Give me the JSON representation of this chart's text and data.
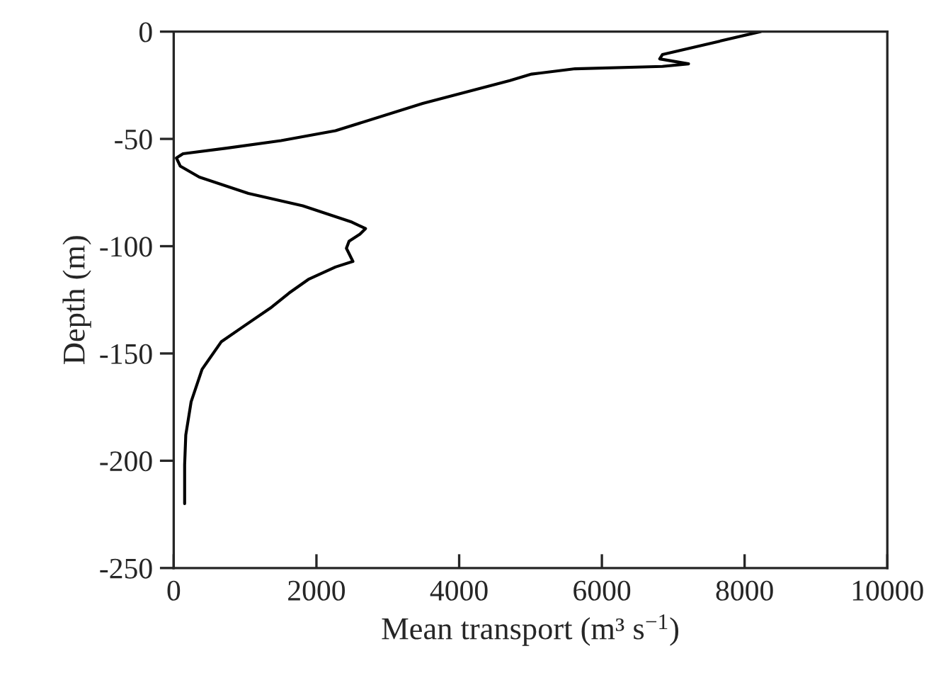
{
  "chart_data": {
    "type": "line",
    "xlabel": "Mean transport (m³ s$^{−1}$)",
    "ylabel": "Depth (m)",
    "xlim": [
      0,
      10000
    ],
    "xticks": [
      0,
      2000,
      4000,
      6000,
      8000,
      10000
    ],
    "ylim": [
      -250,
      0
    ],
    "yticks": [
      -250,
      -200,
      -150,
      -100,
      -50,
      0
    ],
    "grid": false,
    "marker": "none",
    "line_style": "solid",
    "series": [
      {
        "color": "#000000",
        "x": [
          8222,
          6848,
          6810,
          7214,
          6848,
          5626,
          5015,
          4710,
          3489,
          2267,
          1504,
          741,
          130,
          38,
          92,
          359,
          1046,
          1808,
          2497,
          2688,
          2610,
          2457,
          2420,
          2511,
          2267,
          1886,
          1618,
          1352,
          969,
          665,
          397,
          244,
          169,
          153,
          153
        ],
        "values": [
          0,
          -10.7,
          -12.7,
          -15,
          -16.2,
          -17.3,
          -19.8,
          -22.8,
          -33.5,
          -46.2,
          -50.8,
          -54.3,
          -56.9,
          -58.9,
          -62.7,
          -67.8,
          -75.4,
          -81.2,
          -88.8,
          -91.8,
          -94.4,
          -97.7,
          -101,
          -107.1,
          -109.7,
          -115.5,
          -121.8,
          -128.9,
          -137.6,
          -144.6,
          -157.4,
          -172.5,
          -188,
          -202,
          -220
        ]
      }
    ]
  }
}
